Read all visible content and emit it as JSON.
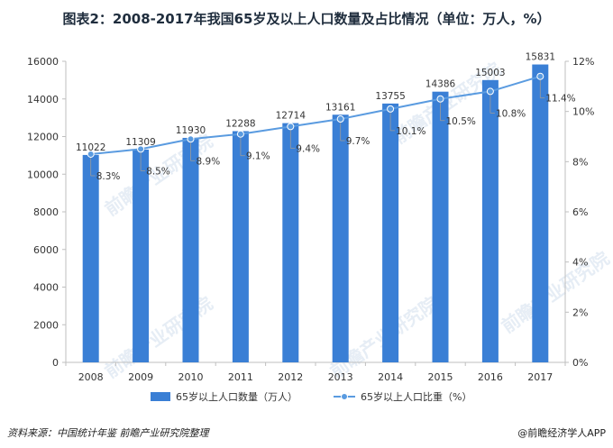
{
  "title": "图表2：2008-2017年我国65岁及以上人口数量及占比情况（单位：万人，%）",
  "source": "资料来源：中国统计年鉴  前瞻产业研究院整理",
  "brand": "@前瞻经济学人APP",
  "watermark_text": "前瞻产业研究院",
  "colors": {
    "bar": "#3a7fd5",
    "line": "#5a9be0",
    "axis": "#bfbfbf",
    "text": "#333333"
  },
  "chart_data": {
    "type": "bar",
    "categories": [
      "2008",
      "2009",
      "2010",
      "2011",
      "2012",
      "2013",
      "2014",
      "2015",
      "2016",
      "2017"
    ],
    "series": [
      {
        "name": "65岁以上人口数量（万人）",
        "type": "bar",
        "axis": "left",
        "values": [
          11022,
          11309,
          11930,
          12288,
          12714,
          13161,
          13755,
          14386,
          15003,
          15831
        ]
      },
      {
        "name": "65岁以上人口比重（%）",
        "type": "line",
        "axis": "right",
        "values": [
          8.3,
          8.5,
          8.9,
          9.1,
          9.4,
          9.7,
          10.1,
          10.5,
          10.8,
          11.4
        ]
      }
    ],
    "value_labels": [
      "11022",
      "11309",
      "11930",
      "12288",
      "12714",
      "13161",
      "13755",
      "14386",
      "15003",
      "15831"
    ],
    "pct_labels": [
      "8.3%",
      "8.5%",
      "8.9%",
      "9.1%",
      "9.4%",
      "9.7%",
      "10.1%",
      "10.5%",
      "10.8%",
      "11.4%"
    ],
    "yleft": {
      "min": 0,
      "max": 16000,
      "step": 2000,
      "ticks": [
        "0",
        "2000",
        "4000",
        "6000",
        "8000",
        "10000",
        "12000",
        "14000",
        "16000"
      ]
    },
    "yright": {
      "min": 0,
      "max": 12,
      "step": 2,
      "ticks": [
        "0%",
        "2%",
        "4%",
        "6%",
        "8%",
        "10%",
        "12%"
      ]
    },
    "grid": false,
    "legend": "bottom"
  }
}
